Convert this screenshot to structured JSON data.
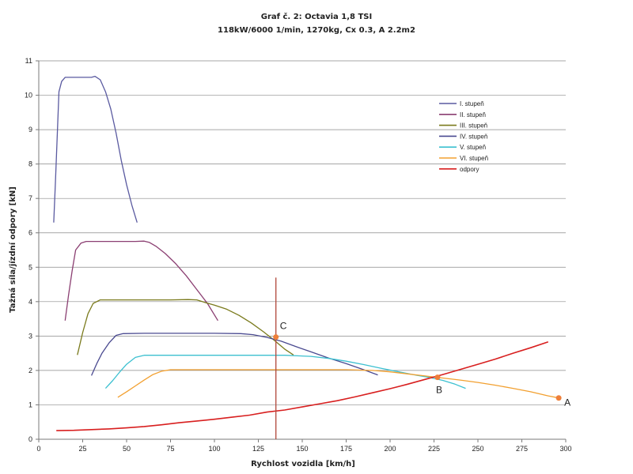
{
  "chart_data": {
    "type": "line",
    "title": "Graf č. 2: Octavia 1,8 TSI",
    "subtitle": "118kW/6000 1/min, 1270kg, Cx 0.3, A 2.2m2",
    "xlabel": "Rychlost vozidla [km/h]",
    "ylabel": "Tažná síla/jízdní odpory [kN]",
    "xlim": [
      0,
      300
    ],
    "ylim": [
      0,
      11
    ],
    "xticks": [
      0,
      25,
      50,
      75,
      100,
      125,
      150,
      175,
      200,
      225,
      250,
      275,
      300
    ],
    "yticks": [
      0,
      1,
      2,
      3,
      4,
      5,
      6,
      7,
      8,
      9,
      10,
      11
    ],
    "grid": "horizontal",
    "legend_position": "right",
    "series": [
      {
        "name": "I. stupeň",
        "color": "#5a5aa0",
        "points": [
          [
            8.5,
            6.3
          ],
          [
            9.5,
            7.5
          ],
          [
            10.5,
            8.8
          ],
          [
            11.5,
            10.1
          ],
          [
            13,
            10.4
          ],
          [
            15,
            10.52
          ],
          [
            20,
            10.52
          ],
          [
            25,
            10.52
          ],
          [
            30,
            10.52
          ],
          [
            32,
            10.55
          ],
          [
            35,
            10.45
          ],
          [
            38,
            10.1
          ],
          [
            41,
            9.6
          ],
          [
            44,
            8.9
          ],
          [
            47,
            8.1
          ],
          [
            50,
            7.4
          ],
          [
            53,
            6.8
          ],
          [
            56,
            6.3
          ]
        ]
      },
      {
        "name": "II. stupeň",
        "color": "#8b3f72",
        "points": [
          [
            15,
            3.45
          ],
          [
            17,
            4.2
          ],
          [
            19,
            4.9
          ],
          [
            21,
            5.5
          ],
          [
            24,
            5.7
          ],
          [
            27,
            5.75
          ],
          [
            35,
            5.75
          ],
          [
            45,
            5.75
          ],
          [
            55,
            5.75
          ],
          [
            60,
            5.76
          ],
          [
            63,
            5.72
          ],
          [
            67,
            5.6
          ],
          [
            72,
            5.4
          ],
          [
            78,
            5.1
          ],
          [
            84,
            4.75
          ],
          [
            90,
            4.35
          ],
          [
            96,
            3.95
          ],
          [
            102,
            3.45
          ]
        ]
      },
      {
        "name": "III. stupeň",
        "color": "#7a7a1c",
        "points": [
          [
            22,
            2.45
          ],
          [
            25,
            3.1
          ],
          [
            28,
            3.65
          ],
          [
            31,
            3.95
          ],
          [
            35,
            4.05
          ],
          [
            45,
            4.05
          ],
          [
            60,
            4.05
          ],
          [
            75,
            4.05
          ],
          [
            85,
            4.06
          ],
          [
            90,
            4.05
          ],
          [
            95,
            3.97
          ],
          [
            100,
            3.9
          ],
          [
            107,
            3.78
          ],
          [
            114,
            3.6
          ],
          [
            121,
            3.38
          ],
          [
            128,
            3.12
          ],
          [
            134,
            2.88
          ],
          [
            140,
            2.62
          ],
          [
            145,
            2.45
          ]
        ]
      },
      {
        "name": "IV. stupeň",
        "color": "#4a4a90",
        "points": [
          [
            30,
            1.85
          ],
          [
            33,
            2.2
          ],
          [
            36,
            2.5
          ],
          [
            40,
            2.8
          ],
          [
            44,
            3.02
          ],
          [
            48,
            3.07
          ],
          [
            60,
            3.08
          ],
          [
            80,
            3.08
          ],
          [
            100,
            3.08
          ],
          [
            115,
            3.07
          ],
          [
            122,
            3.04
          ],
          [
            130,
            2.96
          ],
          [
            138,
            2.85
          ],
          [
            146,
            2.7
          ],
          [
            155,
            2.54
          ],
          [
            165,
            2.36
          ],
          [
            175,
            2.2
          ],
          [
            185,
            2.02
          ],
          [
            193,
            1.87
          ]
        ]
      },
      {
        "name": "V. stupeň",
        "color": "#3cc0d0",
        "points": [
          [
            38,
            1.48
          ],
          [
            42,
            1.7
          ],
          [
            46,
            1.95
          ],
          [
            50,
            2.18
          ],
          [
            55,
            2.38
          ],
          [
            60,
            2.44
          ],
          [
            80,
            2.44
          ],
          [
            100,
            2.44
          ],
          [
            120,
            2.44
          ],
          [
            140,
            2.44
          ],
          [
            155,
            2.41
          ],
          [
            165,
            2.35
          ],
          [
            175,
            2.27
          ],
          [
            185,
            2.17
          ],
          [
            195,
            2.06
          ],
          [
            205,
            1.96
          ],
          [
            215,
            1.86
          ],
          [
            222,
            1.8
          ],
          [
            230,
            1.71
          ],
          [
            237,
            1.6
          ],
          [
            243,
            1.48
          ]
        ]
      },
      {
        "name": "VI. stupeň",
        "color": "#f2a030",
        "points": [
          [
            45,
            1.22
          ],
          [
            50,
            1.38
          ],
          [
            55,
            1.55
          ],
          [
            60,
            1.72
          ],
          [
            65,
            1.88
          ],
          [
            70,
            1.98
          ],
          [
            75,
            2.02
          ],
          [
            100,
            2.02
          ],
          [
            125,
            2.02
          ],
          [
            150,
            2.02
          ],
          [
            175,
            2.02
          ],
          [
            190,
            2.0
          ],
          [
            200,
            1.96
          ],
          [
            210,
            1.9
          ],
          [
            220,
            1.84
          ],
          [
            230,
            1.78
          ],
          [
            240,
            1.72
          ],
          [
            250,
            1.65
          ],
          [
            260,
            1.57
          ],
          [
            270,
            1.48
          ],
          [
            280,
            1.38
          ],
          [
            290,
            1.26
          ],
          [
            296,
            1.2
          ]
        ]
      },
      {
        "name": "odpory",
        "color": "#d81f1f",
        "points": [
          [
            10,
            0.25
          ],
          [
            20,
            0.26
          ],
          [
            30,
            0.28
          ],
          [
            40,
            0.3
          ],
          [
            50,
            0.33
          ],
          [
            60,
            0.37
          ],
          [
            70,
            0.42
          ],
          [
            80,
            0.48
          ],
          [
            90,
            0.53
          ],
          [
            100,
            0.58
          ],
          [
            110,
            0.64
          ],
          [
            120,
            0.7
          ],
          [
            130,
            0.79
          ],
          [
            140,
            0.85
          ],
          [
            150,
            0.94
          ],
          [
            160,
            1.03
          ],
          [
            170,
            1.12
          ],
          [
            180,
            1.23
          ],
          [
            190,
            1.35
          ],
          [
            200,
            1.47
          ],
          [
            210,
            1.6
          ],
          [
            220,
            1.74
          ],
          [
            230,
            1.88
          ],
          [
            240,
            2.03
          ],
          [
            250,
            2.18
          ],
          [
            260,
            2.33
          ],
          [
            270,
            2.5
          ],
          [
            280,
            2.66
          ],
          [
            290,
            2.83
          ]
        ]
      }
    ],
    "vertical_line": {
      "x": 135,
      "color": "#b0483a"
    },
    "annotations": [
      {
        "label": "C",
        "x": 135,
        "y": 2.97,
        "color": "#ee7f3a"
      },
      {
        "label": "B",
        "x": 227,
        "y": 1.8,
        "color": "#ee7f3a"
      },
      {
        "label": "A",
        "x": 296,
        "y": 1.2,
        "color": "#ee7f3a"
      }
    ]
  }
}
